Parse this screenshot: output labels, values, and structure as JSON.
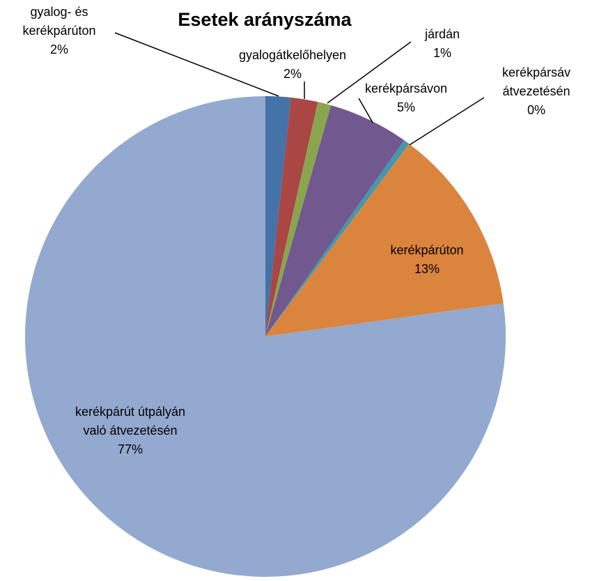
{
  "chart_data": {
    "type": "pie",
    "title": "Esetek arányszáma",
    "categories": [
      [
        "gyalog- és",
        "kerékpárúton"
      ],
      [
        "gyalogátkelőhelyen"
      ],
      [
        "járdán"
      ],
      [
        "kerékpársávon"
      ],
      [
        "kerékpársáv",
        "átvezetésén"
      ],
      [
        "kerékpárúton"
      ],
      [
        "kerékpárút útpályán",
        "való átvezetésén"
      ]
    ],
    "values": [
      1.7,
      1.8,
      0.9,
      5.4,
      0.4,
      12.6,
      77.2
    ],
    "value_labels": [
      "2%",
      "2%",
      "1%",
      "5%",
      "0%",
      "13%",
      "77%"
    ],
    "colors": [
      "#4572a7",
      "#aa4643",
      "#89a54e",
      "#71588f",
      "#4198af",
      "#db843d",
      "#93a9cf"
    ]
  }
}
